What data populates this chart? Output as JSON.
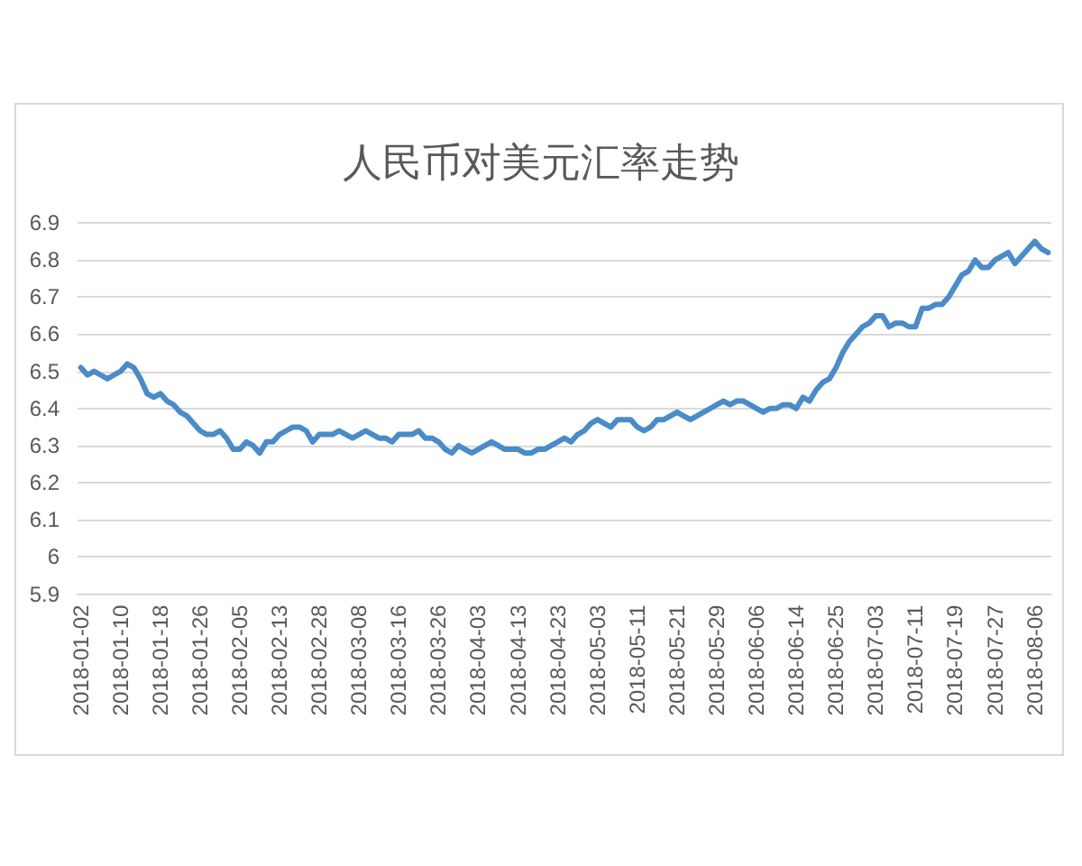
{
  "chart_data": {
    "type": "line",
    "title": "人民币对美元汇率走势",
    "categories": [
      "2018-01-02",
      null,
      null,
      null,
      null,
      null,
      "2018-01-10",
      null,
      null,
      null,
      null,
      null,
      "2018-01-18",
      null,
      null,
      null,
      null,
      null,
      "2018-01-26",
      null,
      null,
      null,
      null,
      null,
      "2018-02-05",
      null,
      null,
      null,
      null,
      null,
      "2018-02-13",
      null,
      null,
      null,
      null,
      null,
      "2018-02-28",
      null,
      null,
      null,
      null,
      null,
      "2018-03-08",
      null,
      null,
      null,
      null,
      null,
      "2018-03-16",
      null,
      null,
      null,
      null,
      null,
      "2018-03-26",
      null,
      null,
      null,
      null,
      null,
      "2018-04-03",
      null,
      null,
      null,
      null,
      null,
      "2018-04-13",
      null,
      null,
      null,
      null,
      null,
      "2018-04-23",
      null,
      null,
      null,
      null,
      null,
      "2018-05-03",
      null,
      null,
      null,
      null,
      null,
      "2018-05-11",
      null,
      null,
      null,
      null,
      null,
      "2018-05-21",
      null,
      null,
      null,
      null,
      null,
      "2018-05-29",
      null,
      null,
      null,
      null,
      null,
      "2018-06-06",
      null,
      null,
      null,
      null,
      null,
      "2018-06-14",
      null,
      null,
      null,
      null,
      null,
      "2018-06-25",
      null,
      null,
      null,
      null,
      null,
      "2018-07-03",
      null,
      null,
      null,
      null,
      null,
      "2018-07-11",
      null,
      null,
      null,
      null,
      null,
      "2018-07-19",
      null,
      null,
      null,
      null,
      null,
      "2018-07-27",
      null,
      null,
      null,
      null,
      null,
      "2018-08-06",
      null,
      null
    ],
    "values": [
      6.51,
      6.49,
      6.5,
      6.49,
      6.48,
      6.49,
      6.5,
      6.52,
      6.51,
      6.48,
      6.44,
      6.43,
      6.44,
      6.42,
      6.41,
      6.39,
      6.38,
      6.36,
      6.34,
      6.33,
      6.33,
      6.34,
      6.32,
      6.29,
      6.29,
      6.31,
      6.3,
      6.28,
      6.31,
      6.31,
      6.33,
      6.34,
      6.35,
      6.35,
      6.34,
      6.31,
      6.33,
      6.33,
      6.33,
      6.34,
      6.33,
      6.32,
      6.33,
      6.34,
      6.33,
      6.32,
      6.32,
      6.31,
      6.33,
      6.33,
      6.33,
      6.34,
      6.32,
      6.32,
      6.31,
      6.29,
      6.28,
      6.3,
      6.29,
      6.28,
      6.29,
      6.3,
      6.31,
      6.3,
      6.29,
      6.29,
      6.29,
      6.28,
      6.28,
      6.29,
      6.29,
      6.3,
      6.31,
      6.32,
      6.31,
      6.33,
      6.34,
      6.36,
      6.37,
      6.36,
      6.35,
      6.37,
      6.37,
      6.37,
      6.35,
      6.34,
      6.35,
      6.37,
      6.37,
      6.38,
      6.39,
      6.38,
      6.37,
      6.38,
      6.39,
      6.4,
      6.41,
      6.42,
      6.41,
      6.42,
      6.42,
      6.41,
      6.4,
      6.39,
      6.4,
      6.4,
      6.41,
      6.41,
      6.4,
      6.43,
      6.42,
      6.45,
      6.47,
      6.48,
      6.51,
      6.55,
      6.58,
      6.6,
      6.62,
      6.63,
      6.65,
      6.65,
      6.62,
      6.63,
      6.63,
      6.62,
      6.62,
      6.67,
      6.67,
      6.68,
      6.68,
      6.7,
      6.73,
      6.76,
      6.77,
      6.8,
      6.78,
      6.78,
      6.8,
      6.81,
      6.82,
      6.79,
      6.81,
      6.83,
      6.85,
      6.83,
      6.82
    ],
    "color": "#4a8bc8",
    "ylim": [
      5.9,
      6.9
    ],
    "yticks": [
      5.9,
      6,
      6.1,
      6.2,
      6.3,
      6.4,
      6.5,
      6.6,
      6.7,
      6.8,
      6.9
    ],
    "grid": "y",
    "marker": "none",
    "line_style": "solid"
  }
}
